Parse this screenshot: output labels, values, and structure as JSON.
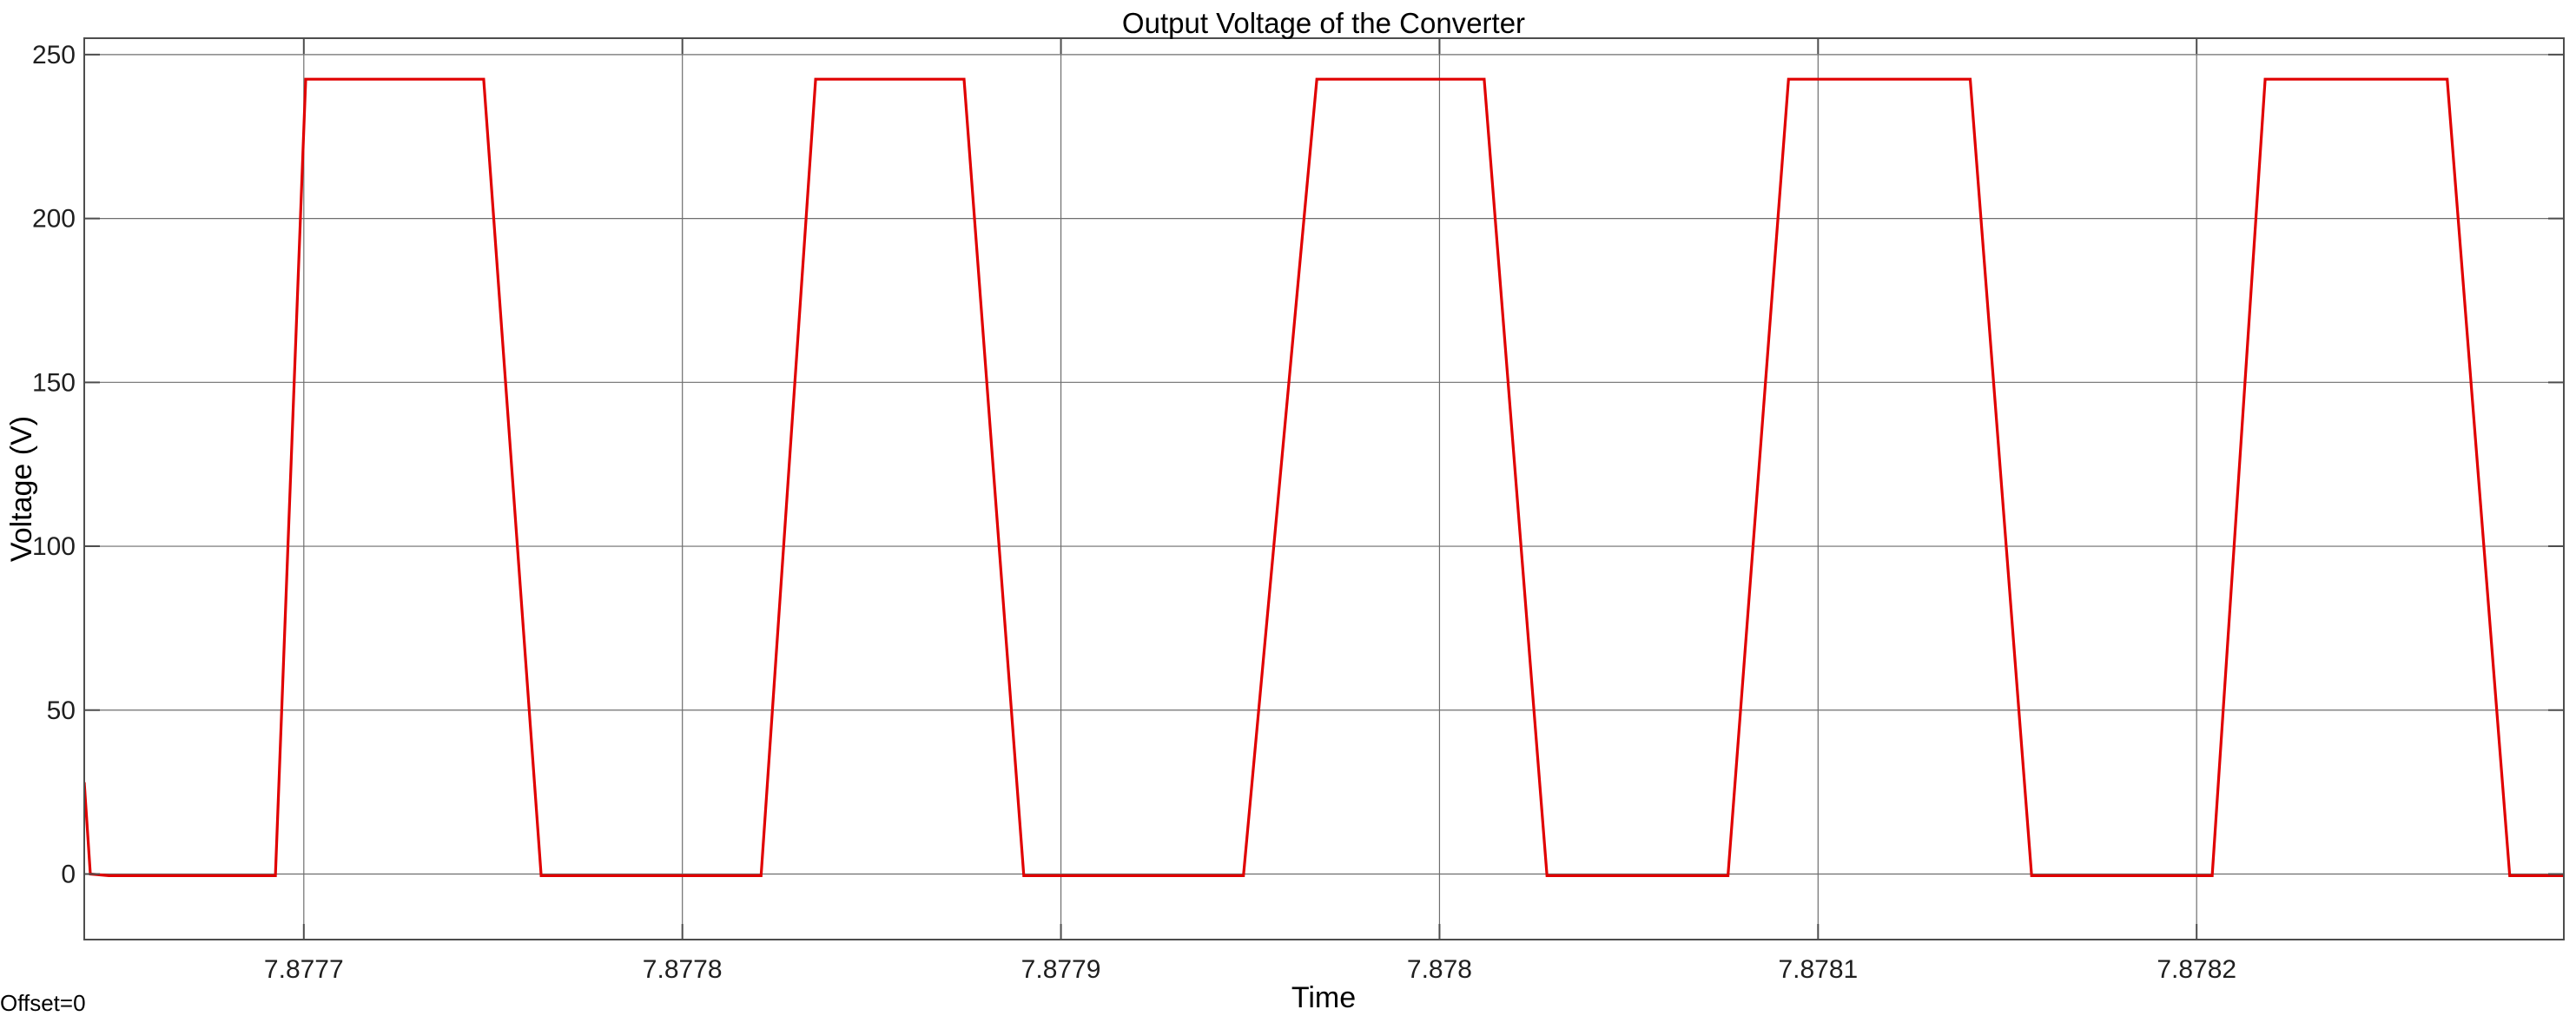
{
  "colors": {
    "series": "#e00000",
    "grid": "#6e6e6e",
    "axes_frame": "#4d4d4d",
    "background": "#ffffff"
  },
  "footer": {
    "offset_text": "Offset=0"
  },
  "chart_data": {
    "type": "line",
    "title": "Output Voltage of the Converter",
    "xlabel": "Time",
    "ylabel": "Voltage (V)",
    "xlim": [
      7.877642,
      7.878297
    ],
    "ylim": [
      -20,
      255
    ],
    "grid": true,
    "legend": "none",
    "x_ticks": [
      {
        "value": 7.8777,
        "label": "7.8777"
      },
      {
        "value": 7.8778,
        "label": "7.8778"
      },
      {
        "value": 7.8779,
        "label": "7.8779"
      },
      {
        "value": 7.878,
        "label": "7.878"
      },
      {
        "value": 7.8781,
        "label": "7.8781"
      },
      {
        "value": 7.8782,
        "label": "7.8782"
      }
    ],
    "y_ticks": [
      {
        "value": 0,
        "label": "0"
      },
      {
        "value": 50,
        "label": "50"
      },
      {
        "value": 100,
        "label": "100"
      },
      {
        "value": 150,
        "label": "150"
      },
      {
        "value": 200,
        "label": "200"
      },
      {
        "value": 250,
        "label": "250"
      }
    ],
    "series": [
      {
        "color": "#e00000",
        "x": [
          7.877642,
          7.8776436,
          7.8776485,
          7.8776925,
          7.8777005,
          7.8777475,
          7.8777627,
          7.8778208,
          7.8778352,
          7.8778744,
          7.8778902,
          7.8779482,
          7.8779676,
          7.8780118,
          7.8780284,
          7.8780762,
          7.8780922,
          7.8781402,
          7.8781564,
          7.8782041,
          7.8782181,
          7.8782662,
          7.8782827,
          7.8782875,
          7.878297
        ],
        "y": [
          28,
          0,
          -0.5,
          -0.5,
          242.5,
          242.5,
          -0.5,
          -0.5,
          242.5,
          242.5,
          -0.5,
          -0.5,
          242.5,
          242.5,
          -0.5,
          -0.5,
          242.5,
          242.5,
          -0.5,
          -0.5,
          242.5,
          242.5,
          -0.5,
          -0.5,
          -0.5
        ]
      }
    ]
  }
}
